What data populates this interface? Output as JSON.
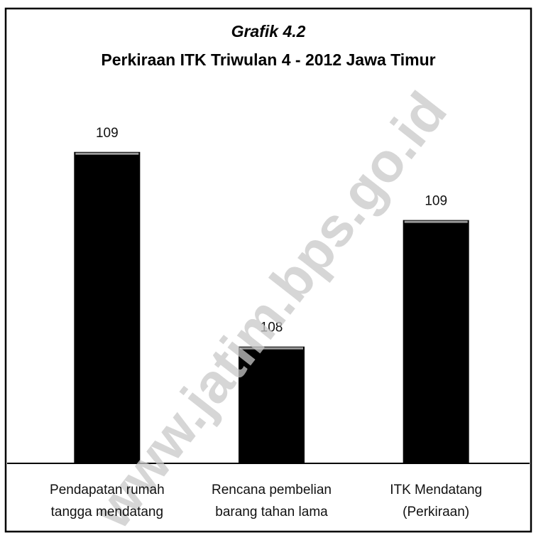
{
  "chart_data": {
    "type": "bar",
    "title": "Grafik 4.2",
    "subtitle": "Perkiraan ITK Triwulan 4 - 2012 Jawa Timur",
    "categories": [
      "Pendapatan rumah\ntangga mendatang",
      "Rencana pembelian\nbarang tahan lama",
      "ITK Mendatang\n(Perkiraan)"
    ],
    "values": [
      109.4,
      108.4,
      109.05
    ],
    "value_labels": [
      "109",
      "108",
      "109"
    ],
    "color": "#000000",
    "ylim": [
      107.8,
      109.6
    ],
    "watermark": "www.jatim.bps.go.id"
  }
}
